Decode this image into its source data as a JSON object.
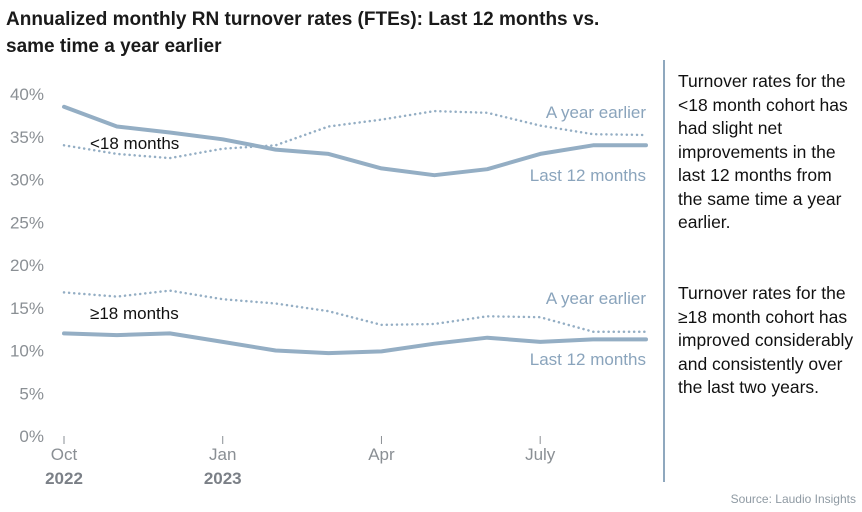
{
  "title": "Annualized monthly RN turnover rates (FTEs): Last 12 months vs. same time a year earlier",
  "notes": [
    "Turnover rates for the <18 month cohort has had slight net improvements in the last 12 months from the same time a year earlier.",
    "Turnover rates for the ≥18 month cohort has improved considerably and consistently over the last two years."
  ],
  "source": "Source: Laudio Insights",
  "colors": {
    "line": "#94aec4",
    "label": "#8aa4bc",
    "axis": "#8a8f94",
    "divider": "#8fa8be"
  },
  "chart_data": {
    "type": "line",
    "title": "Annualized monthly RN turnover rates (FTEs): Last 12 months vs. same time a year earlier",
    "x": [
      "Oct 2022",
      "Nov 2022",
      "Dec 2022",
      "Jan 2023",
      "Feb 2023",
      "Mar 2023",
      "Apr 2023",
      "May 2023",
      "Jun 2023",
      "Jul 2023",
      "Aug 2023",
      "Sep 2023"
    ],
    "x_tick_labels": [
      {
        "month": "Oct",
        "year": "2022",
        "index": 0
      },
      {
        "month": "Jan",
        "year": "2023",
        "index": 3
      },
      {
        "month": "Apr",
        "year": "",
        "index": 6
      },
      {
        "month": "July",
        "year": "",
        "index": 9
      }
    ],
    "y_ticks": [
      "0%",
      "5%",
      "10%",
      "15%",
      "20%",
      "25%",
      "30%",
      "35%",
      "40%"
    ],
    "ylim": [
      0,
      40
    ],
    "grid": false,
    "groups": [
      {
        "label": "<18 months",
        "series": [
          {
            "name": "Last 12 months",
            "style": "solid",
            "values": [
              38.5,
              36.2,
              35.5,
              34.7,
              33.5,
              33.0,
              31.3,
              30.5,
              31.2,
              33.0,
              34.0,
              34.0
            ]
          },
          {
            "name": "A year earlier",
            "style": "dotted",
            "values": [
              34.0,
              33.0,
              32.5,
              33.6,
              34.0,
              36.2,
              37.0,
              38.0,
              37.8,
              36.3,
              35.3,
              35.2
            ]
          }
        ]
      },
      {
        "label": "≥18 months",
        "series": [
          {
            "name": "Last 12 months",
            "style": "solid",
            "values": [
              12.0,
              11.8,
              12.0,
              11.0,
              10.0,
              9.7,
              9.9,
              10.8,
              11.5,
              11.0,
              11.3,
              11.3
            ]
          },
          {
            "name": "A year earlier",
            "style": "dotted",
            "values": [
              16.8,
              16.3,
              17.0,
              16.0,
              15.5,
              14.6,
              13.0,
              13.1,
              14.0,
              13.9,
              12.2,
              12.2
            ]
          }
        ]
      }
    ]
  }
}
